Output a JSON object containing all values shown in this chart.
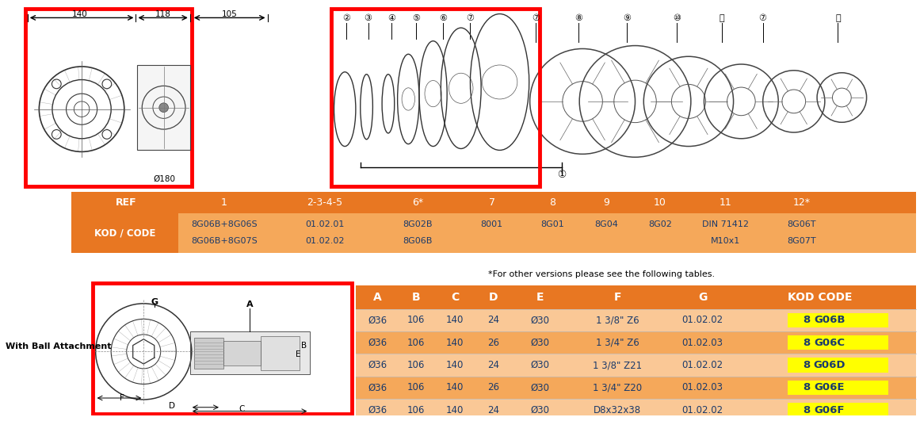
{
  "bg_color": "#ffffff",
  "orange_dark": "#E87722",
  "orange_light": "#F5A85A",
  "orange_lighter": "#FAC896",
  "yellow_highlight": "#FFFF00",
  "red_border": "#FF0000",
  "text_dark": "#1A3A6B",
  "text_black": "#000000",
  "ref_row": [
    "REF",
    "1",
    "2-3-4-5",
    "6*",
    "7",
    "8",
    "9",
    "10",
    "11",
    "12*"
  ],
  "kod_row1": [
    "KOD / CODE",
    "8G06B+8G06S",
    "01.02.01",
    "8G02B",
    "8001",
    "8G01",
    "8G04",
    "8G02",
    "DIN 71412",
    "8G06T"
  ],
  "kod_row2": [
    "",
    "8G06B+8G07S",
    "01.02.02",
    "8G06B",
    "",
    "",
    "",
    "",
    "M10x1",
    "8G07T"
  ],
  "note": "*For other versions please see the following tables.",
  "ball_label": "With Ball Attachment",
  "table_headers": [
    "A",
    "B",
    "C",
    "D",
    "E",
    "F",
    "G",
    "KOD CODE"
  ],
  "table_rows": [
    [
      "Ø36",
      "106",
      "140",
      "24",
      "Ø30",
      "1 3/8\" Z6",
      "01.02.02",
      "8G06B"
    ],
    [
      "Ø36",
      "106",
      "140",
      "26",
      "Ø30",
      "1 3/4\" Z6",
      "01.02.03",
      "8G06C"
    ],
    [
      "Ø36",
      "106",
      "140",
      "24",
      "Ø30",
      "1 3/8\" Z21",
      "01.02.02",
      "8G06D"
    ],
    [
      "Ø36",
      "106",
      "140",
      "26",
      "Ø30",
      "1 3/4\" Z20",
      "01.02.03",
      "8G06E"
    ],
    [
      "Ø36",
      "106",
      "140",
      "24",
      "Ø30",
      "D8x32x38",
      "01.02.02",
      "8G06F"
    ]
  ],
  "row_colors": [
    "#FAC896",
    "#F5A85A",
    "#FAC896",
    "#F5A85A",
    "#FAC896"
  ],
  "kod_highlights": [
    "8G06B",
    "8G06C",
    "8G06D",
    "8G06E",
    "8G06F"
  ],
  "dim_labels_top": [
    "140",
    "118",
    "105"
  ],
  "dim_label_bottom": "Ø180"
}
